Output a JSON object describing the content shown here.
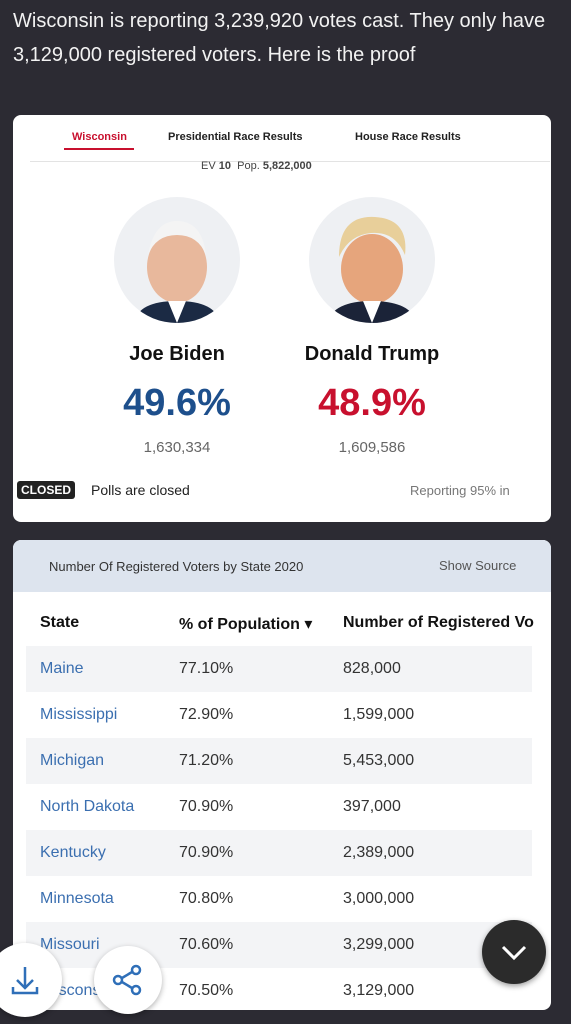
{
  "post": {
    "text": "Wisconsin is reporting 3,239,920 votes cast. They only have 3,129,000 registered voters. Here is the proof"
  },
  "results": {
    "tabs": [
      "Wisconsin",
      "Presidential Race Results",
      "House Race Results"
    ],
    "ev_label": "EV",
    "ev_value": "10",
    "pop_label": "Pop.",
    "pop_value": "5,822,000",
    "candidates": [
      {
        "name": "Joe Biden",
        "percent": "49.6%",
        "votes": "1,630,334"
      },
      {
        "name": "Donald Trump",
        "percent": "48.9%",
        "votes": "1,609,586"
      }
    ],
    "status_badge": "CLOSED",
    "status_text": "Polls are closed",
    "reporting": "Reporting 95% in"
  },
  "table": {
    "title": "Number Of Registered Voters by State 2020",
    "source_link": "Show Source",
    "headers": [
      "State",
      "% of Population",
      "Number of Registered Voters"
    ],
    "rows": [
      [
        "Maine",
        "77.10%",
        "828,000"
      ],
      [
        "Mississippi",
        "72.90%",
        "1,599,000"
      ],
      [
        "Michigan",
        "71.20%",
        "5,453,000"
      ],
      [
        "North Dakota",
        "70.90%",
        "397,000"
      ],
      [
        "Kentucky",
        "70.90%",
        "2,389,000"
      ],
      [
        "Minnesota",
        "70.80%",
        "3,000,000"
      ],
      [
        "Missouri",
        "70.60%",
        "3,299,000"
      ],
      [
        "Wisconsin",
        "70.50%",
        "3,129,000"
      ]
    ]
  }
}
